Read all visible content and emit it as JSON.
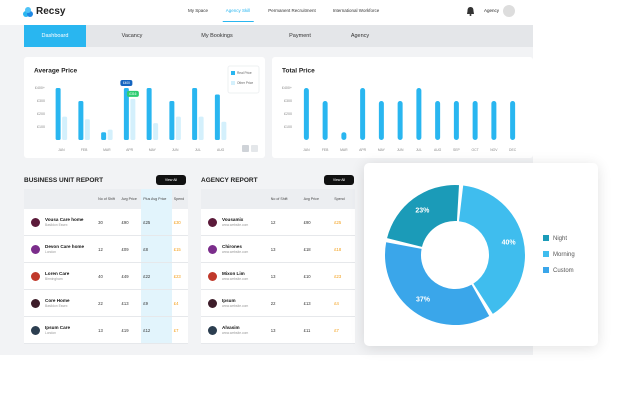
{
  "header": {
    "logo": "Recsy",
    "nav": [
      "My Space",
      "Agency Skill",
      "Permanent Recruitment",
      "International Workforce"
    ],
    "active_nav": 1,
    "user": "Agency"
  },
  "tabs": {
    "items": [
      "Dashboard",
      "Vacancy",
      "My Bookings",
      "Payment",
      "Agency"
    ],
    "active": 0
  },
  "average_price": {
    "type": "bar",
    "title": "Average Price",
    "categories": [
      "JAN",
      "FEB",
      "MAR",
      "APR",
      "MAY",
      "JUN",
      "JUL",
      "AUG"
    ],
    "series": [
      {
        "name": "Real Price",
        "color": "#29b6f0",
        "values": [
          400,
          300,
          60,
          400,
          400,
          300,
          400,
          350
        ],
        "value_labels": [
          null,
          null,
          null,
          "£400",
          null,
          null,
          null,
          null
        ]
      },
      {
        "name": "Other Price",
        "color": "#d4f0fc",
        "values": [
          180,
          160,
          80,
          316,
          130,
          180,
          180,
          140
        ],
        "value_labels": [
          null,
          null,
          null,
          "£316",
          null,
          null,
          null,
          null
        ]
      }
    ],
    "ylim": [
      0,
      500
    ],
    "yticks": [
      {
        "value": 400,
        "label": "£400+"
      },
      {
        "value": 300,
        "label": "£300"
      },
      {
        "value": 200,
        "label": "£200"
      },
      {
        "value": 100,
        "label": "£100"
      }
    ],
    "legend": "upper right"
  },
  "total_price": {
    "type": "bar",
    "title": "Total Price",
    "categories": [
      "JAN",
      "FEB",
      "MAR",
      "APR",
      "MAY",
      "JUN",
      "JUL",
      "AUG",
      "SEP",
      "OCT",
      "NOV",
      "DEC"
    ],
    "series": [
      {
        "name": "Total Price",
        "color": "#29b6f0",
        "values": [
          400,
          300,
          60,
          400,
          300,
          300,
          400,
          300,
          300,
          300,
          300,
          300
        ]
      }
    ],
    "ylim": [
      0,
      500
    ],
    "yticks": [
      {
        "value": 400,
        "label": "£400+"
      },
      {
        "value": 300,
        "label": "£300"
      },
      {
        "value": 200,
        "label": "£200"
      },
      {
        "value": 100,
        "label": "£100"
      }
    ]
  },
  "business_unit_report": {
    "title": "BUSINESS UNIT REPORT",
    "button": "View All",
    "columns": [
      "No of Shift",
      "Avg Price",
      "Plus Avg Price",
      "Spend"
    ],
    "rows": [
      {
        "name": "Vousa Care home",
        "subtitle": "Basildon Essex",
        "cells": [
          "30",
          "£90",
          "£25",
          "£30"
        ]
      },
      {
        "name": "Devon Care home",
        "subtitle": "London",
        "cells": [
          "12",
          "£09",
          "£8",
          "£15"
        ]
      },
      {
        "name": "Loren Care",
        "subtitle": "Birmingham",
        "cells": [
          "40",
          "£49",
          "£22",
          "£23"
        ]
      },
      {
        "name": "Core Home",
        "subtitle": "Basildon Essex",
        "cells": [
          "22",
          "£13",
          "£9",
          "£4"
        ]
      },
      {
        "name": "Ipsum Care",
        "subtitle": "London",
        "cells": [
          "13",
          "£19",
          "£12",
          "£7"
        ]
      }
    ]
  },
  "agency_report": {
    "title": "AGENCY REPORT",
    "button": "View All",
    "columns": [
      "No of Shift",
      "Avg Price",
      "Spend"
    ],
    "rows": [
      {
        "name": "Vousamix",
        "subtitle": "www.website.com",
        "cells": [
          "12",
          "£90",
          "£25"
        ]
      },
      {
        "name": "Chirones",
        "subtitle": "www.website.com",
        "cells": [
          "13",
          "£18",
          "£18"
        ]
      },
      {
        "name": "Mixon Lim",
        "subtitle": "www.website.com",
        "cells": [
          "13",
          "£10",
          "£23"
        ]
      },
      {
        "name": "Ipsum",
        "subtitle": "www.website.com",
        "cells": [
          "22",
          "£13",
          "£4"
        ]
      },
      {
        "name": "Alvasim",
        "subtitle": "www.website.com",
        "cells": [
          "13",
          "£11",
          "£7"
        ]
      }
    ]
  },
  "shift_split": {
    "type": "pie",
    "categories": [
      "Night",
      "Morning",
      "Custom"
    ],
    "values": [
      23,
      40,
      37
    ],
    "value_labels": [
      "23%",
      "40%",
      "37%"
    ],
    "colors": [
      "#1b9bb8",
      "#3fbdee",
      "#3aa6ea"
    ],
    "donut": true
  }
}
